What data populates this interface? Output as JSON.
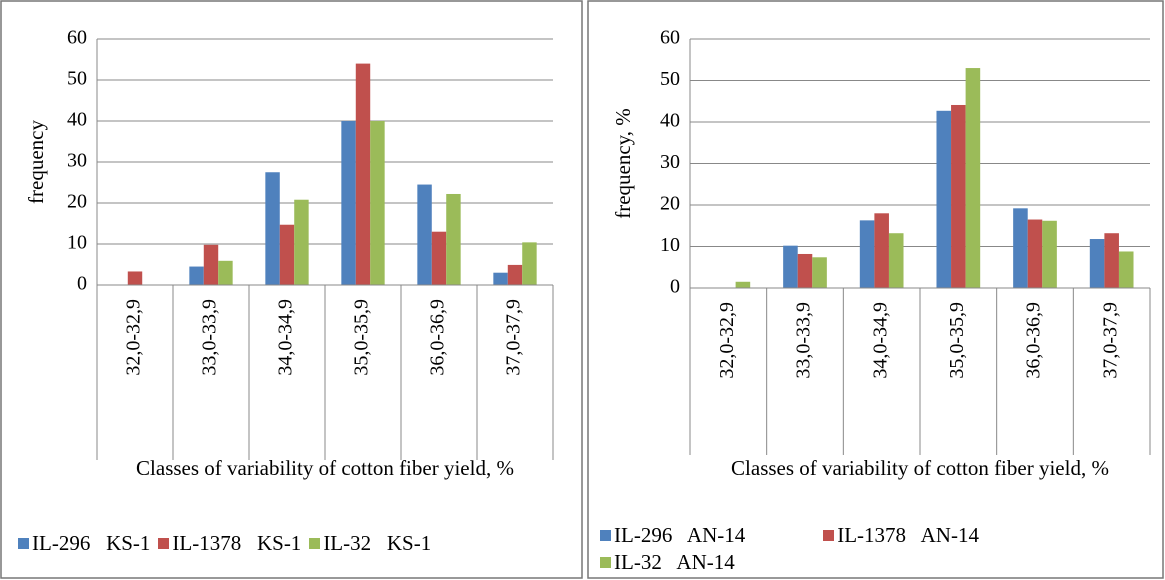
{
  "chart_data": [
    {
      "type": "bar",
      "ylabel": "frequency",
      "xlabel": "Classes of variability of cotton fiber yield, %",
      "categories": [
        "32,0-32,9",
        "33,0-33,9",
        "34,0-34,9",
        "35,0-35,9",
        "36,0-36,9",
        "37,0-37,9"
      ],
      "series": [
        {
          "name": "IL-296   KS-1",
          "color": "#4f81bd",
          "values": [
            0,
            4.5,
            27.5,
            40,
            24.5,
            3
          ]
        },
        {
          "name": "IL-1378   KS-1",
          "color": "#c0504d",
          "values": [
            3.3,
            9.8,
            14.7,
            54,
            13,
            4.9
          ]
        },
        {
          "name": "IL-32   KS-1",
          "color": "#9bbb59",
          "values": [
            0,
            5.9,
            20.8,
            40,
            22.2,
            10.4
          ]
        }
      ],
      "ylim": [
        0,
        60
      ],
      "yticks": [
        0,
        10,
        20,
        30,
        40,
        50,
        60
      ],
      "grid": true
    },
    {
      "type": "bar",
      "ylabel": "frequency, %",
      "xlabel": "Classes of variability of cotton fiber yield, %",
      "categories": [
        "32,0-32,9",
        "33,0-33,9",
        "34,0-34,9",
        "35,0-35,9",
        "36,0-36,9",
        "37,0-37,9"
      ],
      "series": [
        {
          "name": "IL-296   AN-14",
          "color": "#4f81bd",
          "values": [
            0,
            10.2,
            16.3,
            42.7,
            19.2,
            11.8
          ]
        },
        {
          "name": "IL-1378   AN-14",
          "color": "#c0504d",
          "values": [
            0,
            8.2,
            18,
            44.1,
            16.5,
            13.2
          ]
        },
        {
          "name": "IL-32   AN-14",
          "color": "#9bbb59",
          "values": [
            1.5,
            7.4,
            13.2,
            53,
            16.2,
            8.8
          ]
        }
      ],
      "ylim": [
        0,
        60
      ],
      "yticks": [
        0,
        10,
        20,
        30,
        40,
        50,
        60
      ],
      "grid": true
    }
  ]
}
